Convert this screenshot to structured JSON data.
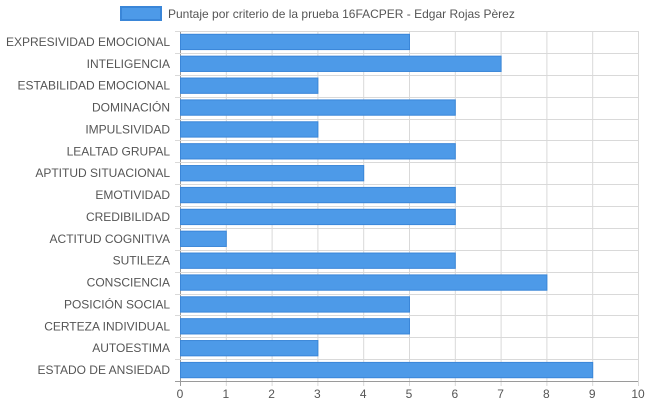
{
  "chart_data": {
    "type": "bar",
    "orientation": "horizontal",
    "title": "",
    "xlabel": "",
    "ylabel": "",
    "legend": {
      "placement": "top-center",
      "label": "Puntaje por criterio de la prueba 16FACPER - Edgar Rojas Pèrez"
    },
    "xlim": [
      0,
      10
    ],
    "xticks": [
      "0",
      "1",
      "2",
      "3",
      "4",
      "5",
      "6",
      "7",
      "8",
      "9",
      "10"
    ],
    "grid": true,
    "colors": {
      "bar_fill": "#4d9ae8",
      "bar_stroke": "#3a86d8",
      "grid": "#d9d9d9",
      "axis": "#9a9a9a",
      "text": "#555555"
    },
    "categories": [
      "EXPRESIVIDAD EMOCIONAL",
      "INTELIGENCIA",
      "ESTABILIDAD EMOCIONAL",
      "DOMINACIÓN",
      "IMPULSIVIDAD",
      "LEALTAD GRUPAL",
      "APTITUD SITUACIONAL",
      "EMOTIVIDAD",
      "CREDIBILIDAD",
      "ACTITUD COGNITIVA",
      "SUTILEZA",
      "CONSCIENCIA",
      "POSICIÓN SOCIAL",
      "CERTEZA INDIVIDUAL",
      "AUTOESTIMA",
      "ESTADO DE ANSIEDAD"
    ],
    "series": [
      {
        "name": "Puntaje por criterio de la prueba 16FACPER - Edgar Rojas Pèrez",
        "values": [
          5,
          7,
          3,
          6,
          3,
          6,
          4,
          6,
          6,
          1,
          6,
          8,
          5,
          5,
          3,
          9
        ]
      }
    ]
  }
}
